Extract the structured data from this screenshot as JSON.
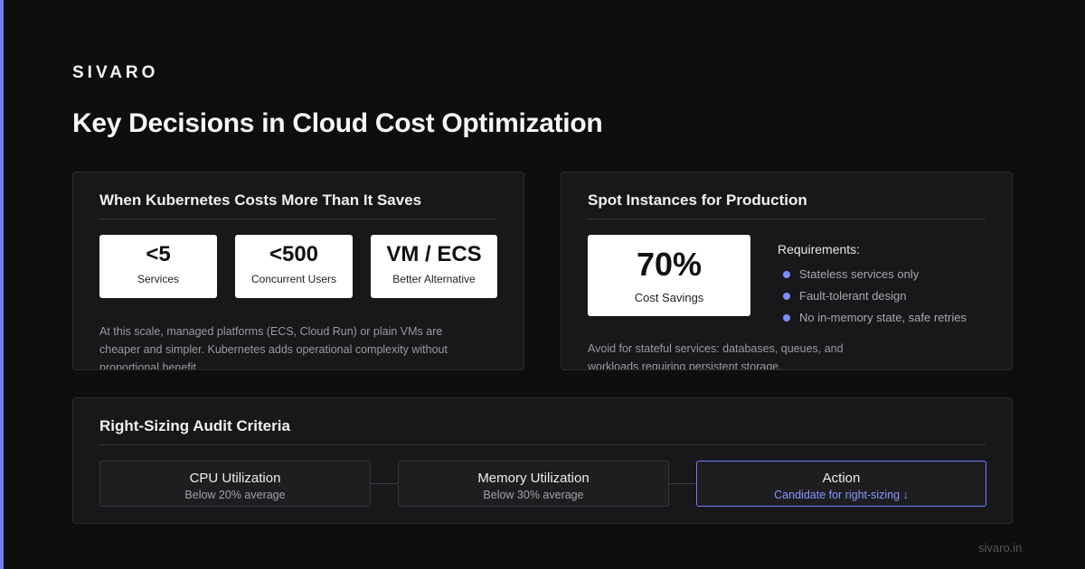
{
  "brand": "SIVARO",
  "title": "Key Decisions in Cloud Cost Optimization",
  "cards": [
    {
      "title": "When Kubernetes Costs More Than It Saves",
      "stats": [
        {
          "value": "<5",
          "label": "Services"
        },
        {
          "value": "<500",
          "label": "Concurrent Users"
        },
        {
          "value": "VM / ECS",
          "label": "Better Alternative"
        }
      ],
      "note": "At this scale, managed platforms (ECS, Cloud Run) or plain VMs are cheaper and simpler. Kubernetes adds operational complexity without proportional benefit."
    },
    {
      "title": "Spot Instances for Production",
      "stat": {
        "value": "70%",
        "label": "Cost Savings"
      },
      "requirements_title": "Requirements:",
      "requirements": [
        "Stateless services only",
        "Fault-tolerant design",
        "No in-memory state, safe retries"
      ],
      "note": "Avoid for stateful services: databases, queues, and workloads requiring persistent storage."
    },
    {
      "title": "Right-Sizing Audit Criteria",
      "steps": [
        {
          "title": "CPU Utilization",
          "subtitle": "Below 20% average"
        },
        {
          "title": "Memory Utilization",
          "subtitle": "Below 30% average"
        },
        {
          "title": "Action",
          "subtitle": "Candidate for right-sizing ↓"
        }
      ]
    }
  ],
  "footer": "sivaro.in"
}
